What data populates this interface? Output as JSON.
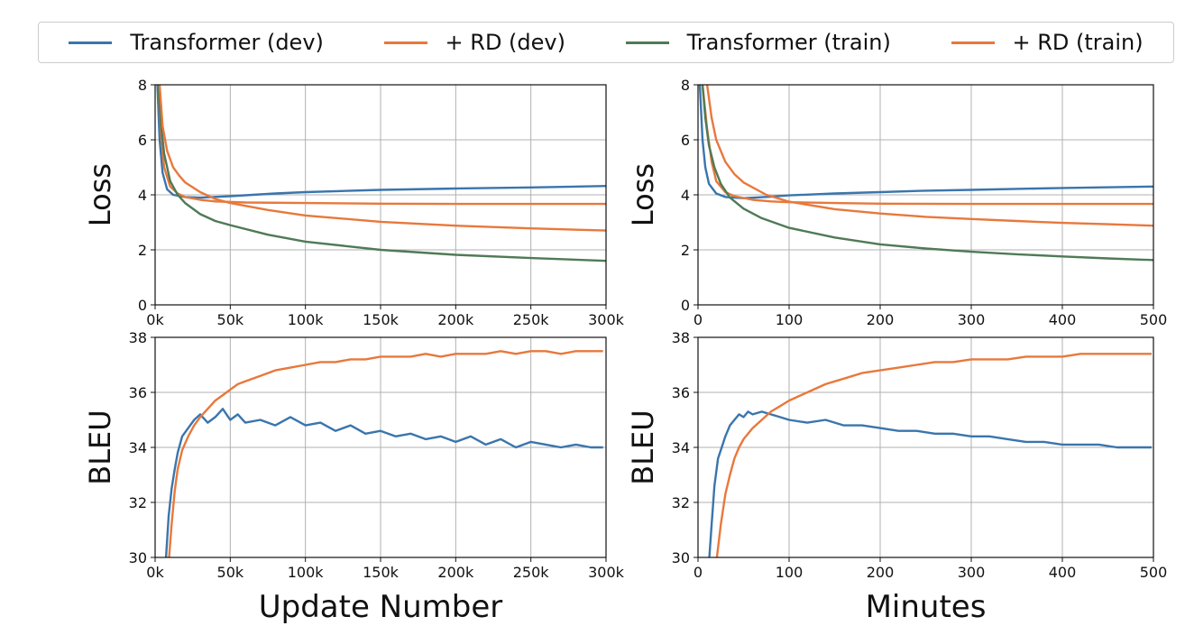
{
  "legend": [
    {
      "label": "Transformer (dev)",
      "color": "#3a75ad"
    },
    {
      "label": "+ RD (dev)",
      "color": "#e8783c"
    },
    {
      "label": "Transformer (train)",
      "color": "#4f7a56"
    },
    {
      "label": "+ RD (train)",
      "color": "#e8783c"
    }
  ],
  "chart_data": [
    {
      "id": "loss-updates",
      "type": "line",
      "xlabel": "",
      "ylabel": "Loss",
      "xlim": [
        0,
        300000
      ],
      "ylim": [
        0,
        8
      ],
      "grid": true,
      "xticks": [
        0,
        50000,
        100000,
        150000,
        200000,
        250000,
        300000
      ],
      "xtick_labels": [
        "0k",
        "50k",
        "100k",
        "150k",
        "200k",
        "250k",
        "300k"
      ],
      "yticks": [
        0,
        2,
        4,
        6,
        8
      ],
      "ytick_labels": [
        "0",
        "2",
        "4",
        "6",
        "8"
      ],
      "series": [
        {
          "name": "Transformer (dev)",
          "color": "#3a75ad",
          "x": [
            1500,
            3000,
            5000,
            8000,
            12000,
            20000,
            30000,
            50000,
            80000,
            100000,
            150000,
            200000,
            250000,
            300000
          ],
          "y": [
            8.0,
            6.0,
            4.8,
            4.2,
            4.0,
            3.92,
            3.9,
            3.95,
            4.05,
            4.1,
            4.18,
            4.23,
            4.27,
            4.32
          ]
        },
        {
          "name": "+ RD (dev)",
          "color": "#e8783c",
          "x": [
            2000,
            4000,
            6000,
            10000,
            15000,
            20000,
            30000,
            40000,
            60000,
            100000,
            150000,
            200000,
            250000,
            300000
          ],
          "y": [
            8.0,
            6.2,
            5.0,
            4.3,
            4.05,
            3.92,
            3.82,
            3.76,
            3.72,
            3.7,
            3.68,
            3.67,
            3.67,
            3.67
          ]
        },
        {
          "name": "Transformer (train)",
          "color": "#4f7a56",
          "x": [
            2000,
            4000,
            6000,
            10000,
            15000,
            20000,
            30000,
            40000,
            50000,
            75000,
            100000,
            150000,
            200000,
            250000,
            300000
          ],
          "y": [
            8.0,
            6.5,
            5.5,
            4.5,
            4.0,
            3.7,
            3.3,
            3.05,
            2.9,
            2.55,
            2.3,
            2.0,
            1.82,
            1.7,
            1.6
          ]
        },
        {
          "name": "+ RD (train)",
          "color": "#e8783c",
          "x": [
            3000,
            5000,
            8000,
            12000,
            16000,
            20000,
            30000,
            40000,
            50000,
            75000,
            100000,
            150000,
            200000,
            250000,
            300000
          ],
          "y": [
            8.0,
            6.5,
            5.6,
            5.0,
            4.7,
            4.45,
            4.1,
            3.85,
            3.7,
            3.45,
            3.25,
            3.02,
            2.88,
            2.78,
            2.7
          ]
        }
      ]
    },
    {
      "id": "loss-minutes",
      "type": "line",
      "xlabel": "",
      "ylabel": "Loss",
      "xlim": [
        0,
        500
      ],
      "ylim": [
        0,
        8
      ],
      "grid": true,
      "xticks": [
        0,
        100,
        200,
        300,
        400,
        500
      ],
      "xtick_labels": [
        "0",
        "100",
        "200",
        "300",
        "400",
        "500"
      ],
      "yticks": [
        0,
        2,
        4,
        6,
        8
      ],
      "ytick_labels": [
        "0",
        "2",
        "4",
        "6",
        "8"
      ],
      "series": [
        {
          "name": "Transformer (dev)",
          "color": "#3a75ad",
          "x": [
            2,
            5,
            8,
            12,
            20,
            30,
            50,
            80,
            100,
            150,
            200,
            250,
            300,
            400,
            500
          ],
          "y": [
            8.0,
            6.0,
            5.0,
            4.4,
            4.05,
            3.92,
            3.88,
            3.93,
            3.98,
            4.05,
            4.1,
            4.15,
            4.18,
            4.25,
            4.3
          ]
        },
        {
          "name": "+ RD (dev)",
          "color": "#e8783c",
          "x": [
            5,
            10,
            15,
            20,
            30,
            40,
            60,
            80,
            100,
            150,
            200,
            300,
            400,
            500
          ],
          "y": [
            8.0,
            6.4,
            5.2,
            4.5,
            4.1,
            3.95,
            3.82,
            3.76,
            3.73,
            3.7,
            3.68,
            3.67,
            3.67,
            3.67
          ]
        },
        {
          "name": "Transformer (train)",
          "color": "#4f7a56",
          "x": [
            5,
            8,
            12,
            18,
            25,
            35,
            50,
            70,
            100,
            150,
            200,
            250,
            300,
            350,
            400,
            450,
            500
          ],
          "y": [
            8.0,
            6.8,
            5.8,
            5.0,
            4.4,
            3.9,
            3.5,
            3.15,
            2.8,
            2.45,
            2.2,
            2.05,
            1.93,
            1.84,
            1.76,
            1.69,
            1.63
          ]
        },
        {
          "name": "+ RD (train)",
          "color": "#e8783c",
          "x": [
            10,
            15,
            20,
            30,
            40,
            50,
            75,
            100,
            150,
            200,
            250,
            300,
            350,
            400,
            450,
            500
          ],
          "y": [
            8.0,
            6.8,
            6.0,
            5.2,
            4.75,
            4.45,
            4.0,
            3.75,
            3.48,
            3.32,
            3.2,
            3.12,
            3.05,
            2.98,
            2.93,
            2.88
          ]
        }
      ]
    },
    {
      "id": "bleu-updates",
      "type": "line",
      "xlabel": "Update Number",
      "ylabel": "BLEU",
      "xlim": [
        0,
        300000
      ],
      "ylim": [
        30,
        38
      ],
      "grid": true,
      "xticks": [
        0,
        50000,
        100000,
        150000,
        200000,
        250000,
        300000
      ],
      "xtick_labels": [
        "0k",
        "50k",
        "100k",
        "150k",
        "200k",
        "250k",
        "300k"
      ],
      "yticks": [
        30,
        32,
        34,
        36,
        38
      ],
      "ytick_labels": [
        "30",
        "32",
        "34",
        "36",
        "38"
      ],
      "series": [
        {
          "name": "Transformer (dev)",
          "color": "#3a75ad",
          "x": [
            7000,
            9000,
            11000,
            13000,
            15000,
            18000,
            22000,
            26000,
            30000,
            35000,
            40000,
            45000,
            50000,
            55000,
            60000,
            70000,
            80000,
            90000,
            100000,
            110000,
            120000,
            130000,
            140000,
            150000,
            160000,
            170000,
            180000,
            190000,
            200000,
            210000,
            220000,
            230000,
            240000,
            250000,
            260000,
            270000,
            280000,
            290000,
            298000
          ],
          "y": [
            29.8,
            31.5,
            32.5,
            33.2,
            33.8,
            34.4,
            34.7,
            35.0,
            35.2,
            34.9,
            35.1,
            35.4,
            35.0,
            35.2,
            34.9,
            35.0,
            34.8,
            35.1,
            34.8,
            34.9,
            34.6,
            34.8,
            34.5,
            34.6,
            34.4,
            34.5,
            34.3,
            34.4,
            34.2,
            34.4,
            34.1,
            34.3,
            34.0,
            34.2,
            34.1,
            34.0,
            34.1,
            34.0,
            34.0
          ]
        },
        {
          "name": "+ RD (dev)",
          "color": "#e8783c",
          "x": [
            9000,
            11000,
            13000,
            15000,
            18000,
            22000,
            26000,
            30000,
            35000,
            40000,
            45000,
            50000,
            55000,
            60000,
            70000,
            80000,
            90000,
            100000,
            110000,
            120000,
            130000,
            140000,
            150000,
            160000,
            170000,
            180000,
            190000,
            200000,
            210000,
            220000,
            230000,
            240000,
            250000,
            260000,
            270000,
            280000,
            290000,
            298000
          ],
          "y": [
            29.8,
            31.2,
            32.4,
            33.2,
            33.9,
            34.4,
            34.8,
            35.1,
            35.4,
            35.7,
            35.9,
            36.1,
            36.3,
            36.4,
            36.6,
            36.8,
            36.9,
            37.0,
            37.1,
            37.1,
            37.2,
            37.2,
            37.3,
            37.3,
            37.3,
            37.4,
            37.3,
            37.4,
            37.4,
            37.4,
            37.5,
            37.4,
            37.5,
            37.5,
            37.4,
            37.5,
            37.5,
            37.5
          ]
        }
      ]
    },
    {
      "id": "bleu-minutes",
      "type": "line",
      "xlabel": "Minutes",
      "ylabel": "BLEU",
      "xlim": [
        0,
        500
      ],
      "ylim": [
        30,
        38
      ],
      "grid": true,
      "xticks": [
        0,
        100,
        200,
        300,
        400,
        500
      ],
      "xtick_labels": [
        "0",
        "100",
        "200",
        "300",
        "400",
        "500"
      ],
      "yticks": [
        30,
        32,
        34,
        36,
        38
      ],
      "ytick_labels": [
        "30",
        "32",
        "34",
        "36",
        "38"
      ],
      "series": [
        {
          "name": "Transformer (dev)",
          "color": "#3a75ad",
          "x": [
            12,
            15,
            18,
            22,
            26,
            30,
            35,
            40,
            45,
            50,
            55,
            60,
            70,
            80,
            90,
            100,
            120,
            140,
            160,
            180,
            200,
            220,
            240,
            260,
            280,
            300,
            320,
            340,
            360,
            380,
            400,
            420,
            440,
            460,
            480,
            498
          ],
          "y": [
            29.8,
            31.2,
            32.6,
            33.6,
            34.0,
            34.4,
            34.8,
            35.0,
            35.2,
            35.1,
            35.3,
            35.2,
            35.3,
            35.2,
            35.1,
            35.0,
            34.9,
            35.0,
            34.8,
            34.8,
            34.7,
            34.6,
            34.6,
            34.5,
            34.5,
            34.4,
            34.4,
            34.3,
            34.2,
            34.2,
            34.1,
            34.1,
            34.1,
            34.0,
            34.0,
            34.0
          ]
        },
        {
          "name": "+ RD (dev)",
          "color": "#e8783c",
          "x": [
            20,
            25,
            30,
            35,
            40,
            45,
            50,
            55,
            60,
            70,
            80,
            90,
            100,
            120,
            140,
            160,
            180,
            200,
            220,
            240,
            260,
            280,
            300,
            320,
            340,
            360,
            380,
            400,
            420,
            440,
            460,
            480,
            498
          ],
          "y": [
            29.8,
            31.2,
            32.3,
            33.0,
            33.6,
            34.0,
            34.3,
            34.5,
            34.7,
            35.0,
            35.3,
            35.5,
            35.7,
            36.0,
            36.3,
            36.5,
            36.7,
            36.8,
            36.9,
            37.0,
            37.1,
            37.1,
            37.2,
            37.2,
            37.2,
            37.3,
            37.3,
            37.3,
            37.4,
            37.4,
            37.4,
            37.4,
            37.4
          ]
        }
      ]
    }
  ]
}
